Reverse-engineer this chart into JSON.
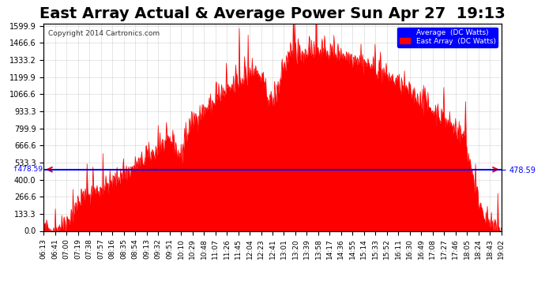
{
  "title": "East Array Actual & Average Power Sun Apr 27  19:13",
  "copyright": "Copyright 2014 Cartronics.com",
  "legend_avg": "Average  (DC Watts)",
  "legend_east": "East Array  (DC Watts)",
  "avg_value": 478.59,
  "ymin": 0.0,
  "ymax": 1599.9,
  "yticks": [
    0.0,
    133.3,
    266.6,
    400.0,
    533.3,
    666.6,
    799.9,
    933.3,
    1066.6,
    1199.9,
    1333.2,
    1466.6,
    1599.9
  ],
  "area_color": "#ff0000",
  "avg_line_color": "#0000ff",
  "background_color": "#ffffff",
  "title_fontsize": 14,
  "x_labels": [
    "06:13",
    "06:41",
    "07:00",
    "07:19",
    "07:38",
    "07:57",
    "08:16",
    "08:35",
    "08:54",
    "09:13",
    "09:32",
    "09:51",
    "10:10",
    "10:29",
    "10:48",
    "11:07",
    "11:26",
    "11:45",
    "12:04",
    "12:23",
    "12:41",
    "13:01",
    "13:20",
    "13:39",
    "13:58",
    "14:17",
    "14:36",
    "14:55",
    "15:14",
    "15:33",
    "15:52",
    "16:11",
    "16:30",
    "16:49",
    "17:08",
    "17:27",
    "17:46",
    "18:05",
    "18:24",
    "18:43",
    "19:02"
  ],
  "right_ytick_label": "478.59",
  "right_ytick_label2": "478.59"
}
